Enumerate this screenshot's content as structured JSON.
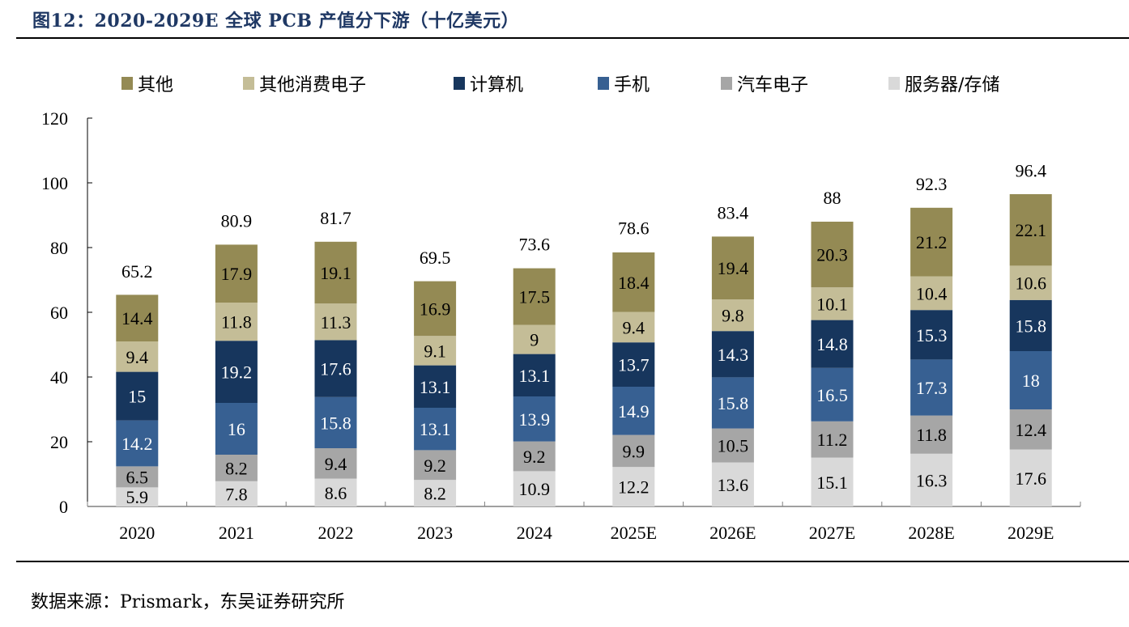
{
  "title": "图12：2020-2029E 全球 PCB 产值分下游（十亿美元）",
  "source": "数据来源：Prismark，东吴证券研究所",
  "chart_data": {
    "type": "bar",
    "stacked": true,
    "title": "2020-2029E 全球 PCB 产值分下游（十亿美元）",
    "xlabel": "",
    "ylabel": "",
    "ylim": [
      0,
      120
    ],
    "yticks": [
      0,
      20,
      40,
      60,
      80,
      100,
      120
    ],
    "grid": false,
    "legend_position": "top",
    "categories": [
      "2020",
      "2021",
      "2022",
      "2023",
      "2024",
      "2025E",
      "2026E",
      "2027E",
      "2028E",
      "2029E"
    ],
    "series": [
      {
        "name": "服务器/存储",
        "color": "#d9d9d9",
        "label_color": "#000000",
        "values": [
          5.9,
          7.8,
          8.6,
          8.2,
          10.9,
          12.2,
          13.6,
          15.1,
          16.3,
          17.6
        ]
      },
      {
        "name": "汽车电子",
        "color": "#a6a6a6",
        "label_color": "#000000",
        "values": [
          6.5,
          8.2,
          9.4,
          9.2,
          9.2,
          9.9,
          10.5,
          11.2,
          11.8,
          12.4
        ]
      },
      {
        "name": "手机",
        "color": "#376092",
        "label_color": "#ffffff",
        "values": [
          14.2,
          16,
          15.8,
          13.1,
          13.9,
          14.9,
          15.8,
          16.5,
          17.3,
          18
        ]
      },
      {
        "name": "计算机",
        "color": "#17365d",
        "label_color": "#ffffff",
        "values": [
          15,
          19.2,
          17.6,
          13.1,
          13.1,
          13.7,
          14.3,
          14.8,
          15.3,
          15.8
        ]
      },
      {
        "name": "其他消费电子",
        "color": "#c4bd97",
        "label_color": "#000000",
        "values": [
          9.4,
          11.8,
          11.3,
          9.1,
          9,
          9.4,
          9.8,
          10.1,
          10.4,
          10.6
        ]
      },
      {
        "name": "其他",
        "color": "#948a54",
        "label_color": "#000000",
        "values": [
          14.4,
          17.9,
          19.1,
          16.9,
          17.5,
          18.4,
          19.4,
          20.3,
          21.2,
          22.1
        ]
      }
    ],
    "totals": [
      65.2,
      80.9,
      81.7,
      69.5,
      73.6,
      78.6,
      83.4,
      88,
      92.3,
      96.4
    ],
    "legend_order": [
      "其他",
      "其他消费电子",
      "计算机",
      "手机",
      "汽车电子",
      "服务器/存储"
    ]
  }
}
